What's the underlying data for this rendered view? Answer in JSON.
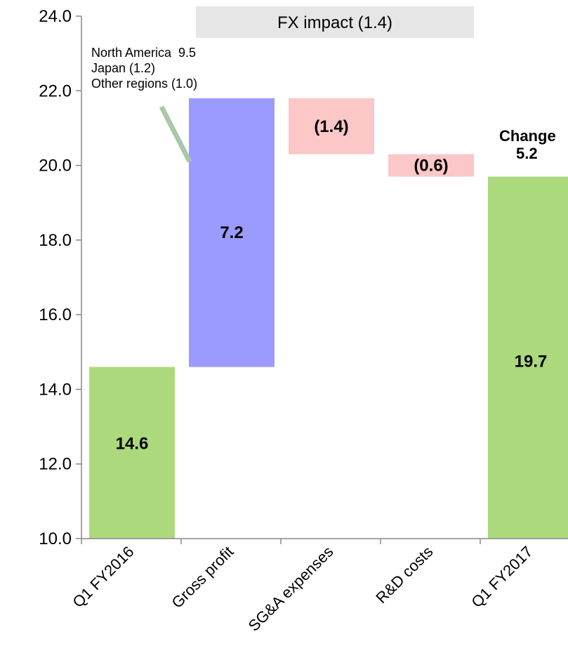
{
  "chart_data": {
    "type": "bar",
    "subtype": "waterfall",
    "categories": [
      "Q1 FY2016",
      "Gross profit",
      "SG&A expenses",
      "R&D costs",
      "Q1 FY2017"
    ],
    "steps": [
      {
        "category": "Q1 FY2016",
        "kind": "total",
        "start": 10.0,
        "end": 14.6,
        "label": "14.6",
        "color": "#acd97c"
      },
      {
        "category": "Gross profit",
        "kind": "increase",
        "start": 14.6,
        "end": 21.8,
        "label": "7.2",
        "color": "#9b9bff"
      },
      {
        "category": "SG&A expenses",
        "kind": "decrease",
        "start": 21.8,
        "end": 20.3,
        "label": "(1.4)",
        "color": "#fcc7c7"
      },
      {
        "category": "R&D costs",
        "kind": "decrease",
        "start": 20.3,
        "end": 19.7,
        "label": "(0.6)",
        "color": "#fcc7c7"
      },
      {
        "category": "Q1 FY2017",
        "kind": "total",
        "start": 10.0,
        "end": 19.7,
        "label": "19.7",
        "color": "#acd97c"
      }
    ],
    "ylim": [
      10.0,
      24.0
    ],
    "yticks": [
      "10.0",
      "12.0",
      "14.0",
      "16.0",
      "18.0",
      "20.0",
      "22.0",
      "24.0"
    ],
    "ytick_values": [
      10,
      12,
      14,
      16,
      18,
      20,
      22,
      24
    ],
    "grid": false,
    "annotations": {
      "fx_impact": {
        "text": "FX impact (1.4)",
        "color": "#e6e6e6",
        "from": "Gross profit",
        "to": "R&D costs"
      },
      "gross_profit_breakdown": [
        "North America  9.5",
        "Japan (1.2)",
        "Other regions (1.0)"
      ],
      "change_label": "Change",
      "change_value": "5.2"
    },
    "leader_line_color": "#a8c8a8"
  }
}
